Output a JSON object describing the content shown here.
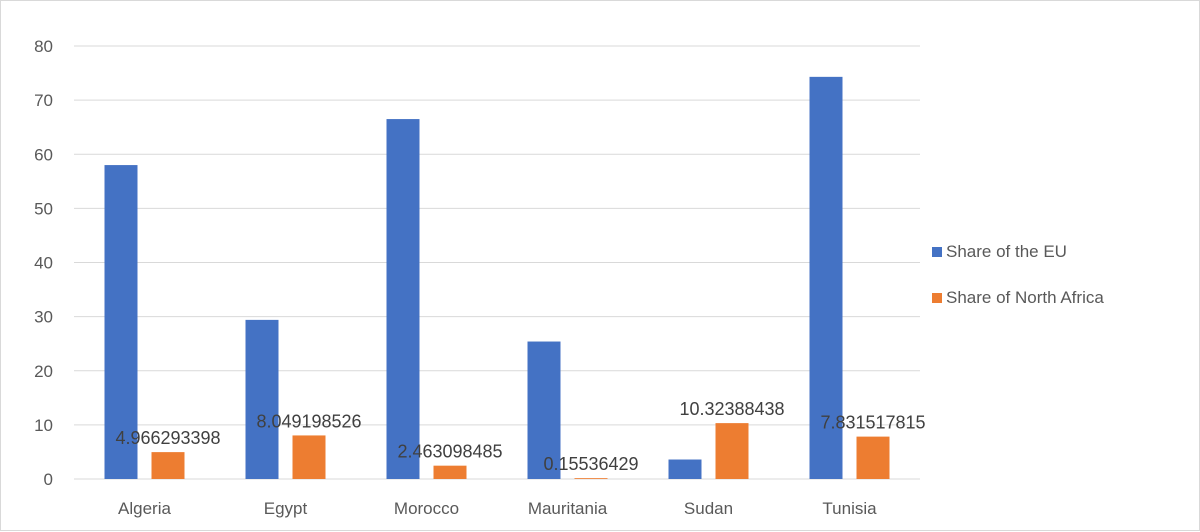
{
  "chart_data": {
    "type": "bar",
    "categories": [
      "Algeria",
      "Egypt",
      "Morocco",
      "Mauritania",
      "Sudan",
      "Tunisia"
    ],
    "series": [
      {
        "name": "Share of the EU",
        "color": "#4472C4",
        "values": [
          58.0,
          29.4,
          66.5,
          25.4,
          3.6,
          74.3
        ],
        "data_labels": [
          "",
          "",
          "",
          "",
          "",
          ""
        ]
      },
      {
        "name": "Share of North Africa",
        "color": "#ED7D31",
        "values": [
          4.966293398,
          8.049198526,
          2.463098485,
          0.15536429,
          10.32388438,
          7.831517815
        ],
        "data_labels": [
          "4.966293398",
          "8.049198526",
          "2.463098485",
          "0.15536429",
          "10.32388438",
          "7.831517815"
        ]
      }
    ],
    "y_ticks": [
      "0",
      "10",
      "20",
      "30",
      "40",
      "50",
      "60",
      "70",
      "80"
    ],
    "ylim": [
      0,
      80
    ],
    "title": "",
    "xlabel": "",
    "ylabel": "",
    "grid": true,
    "legend_position": "right",
    "gridline_color": "#d9d9d9"
  }
}
